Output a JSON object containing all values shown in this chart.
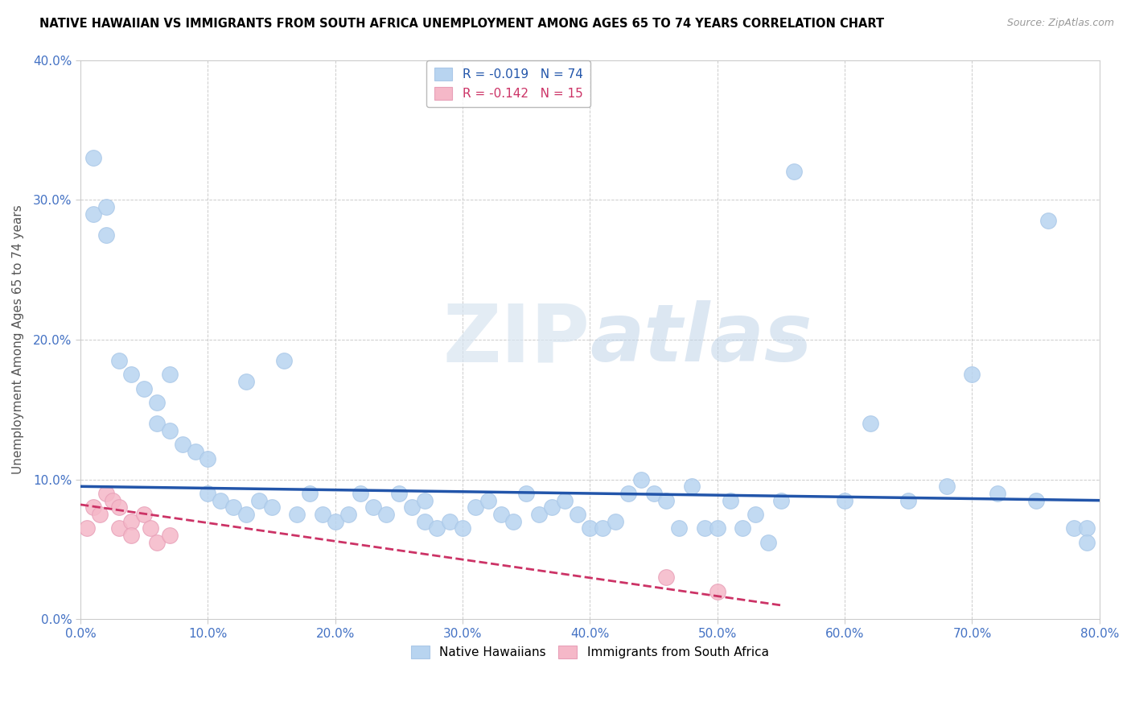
{
  "title": "NATIVE HAWAIIAN VS IMMIGRANTS FROM SOUTH AFRICA UNEMPLOYMENT AMONG AGES 65 TO 74 YEARS CORRELATION CHART",
  "source": "Source: ZipAtlas.com",
  "ylabel": "Unemployment Among Ages 65 to 74 years",
  "xlim": [
    0.0,
    0.8
  ],
  "ylim": [
    0.0,
    0.4
  ],
  "xticks": [
    0.0,
    0.1,
    0.2,
    0.3,
    0.4,
    0.5,
    0.6,
    0.7,
    0.8
  ],
  "xticklabels": [
    "0.0%",
    "10.0%",
    "20.0%",
    "30.0%",
    "40.0%",
    "50.0%",
    "60.0%",
    "70.0%",
    "80.0%"
  ],
  "yticks": [
    0.0,
    0.1,
    0.2,
    0.3,
    0.4
  ],
  "yticklabels": [
    "0.0%",
    "10.0%",
    "20.0%",
    "30.0%",
    "40.0%"
  ],
  "native_hawaiian_color": "#b8d4f0",
  "south_africa_color": "#f5b8c8",
  "trend_blue_color": "#2255aa",
  "trend_pink_color": "#cc3366",
  "watermark_color": "#e0e8f4",
  "legend_R_blue": "R = -0.019",
  "legend_N_blue": "N = 74",
  "legend_R_pink": "R = -0.142",
  "legend_N_pink": "N = 15",
  "native_hawaiian_x": [
    0.01,
    0.01,
    0.02,
    0.02,
    0.03,
    0.04,
    0.05,
    0.06,
    0.06,
    0.07,
    0.07,
    0.08,
    0.09,
    0.1,
    0.1,
    0.11,
    0.12,
    0.13,
    0.13,
    0.14,
    0.15,
    0.16,
    0.17,
    0.18,
    0.19,
    0.2,
    0.21,
    0.22,
    0.23,
    0.24,
    0.25,
    0.26,
    0.27,
    0.27,
    0.28,
    0.29,
    0.3,
    0.31,
    0.32,
    0.33,
    0.34,
    0.35,
    0.36,
    0.37,
    0.38,
    0.39,
    0.4,
    0.41,
    0.42,
    0.43,
    0.44,
    0.45,
    0.46,
    0.47,
    0.48,
    0.49,
    0.5,
    0.51,
    0.52,
    0.53,
    0.54,
    0.55,
    0.56,
    0.6,
    0.62,
    0.65,
    0.68,
    0.7,
    0.72,
    0.75,
    0.76,
    0.78,
    0.79,
    0.79
  ],
  "native_hawaiian_y": [
    0.33,
    0.29,
    0.295,
    0.275,
    0.185,
    0.175,
    0.165,
    0.155,
    0.14,
    0.135,
    0.175,
    0.125,
    0.12,
    0.115,
    0.09,
    0.085,
    0.08,
    0.075,
    0.17,
    0.085,
    0.08,
    0.185,
    0.075,
    0.09,
    0.075,
    0.07,
    0.075,
    0.09,
    0.08,
    0.075,
    0.09,
    0.08,
    0.085,
    0.07,
    0.065,
    0.07,
    0.065,
    0.08,
    0.085,
    0.075,
    0.07,
    0.09,
    0.075,
    0.08,
    0.085,
    0.075,
    0.065,
    0.065,
    0.07,
    0.09,
    0.1,
    0.09,
    0.085,
    0.065,
    0.095,
    0.065,
    0.065,
    0.085,
    0.065,
    0.075,
    0.055,
    0.085,
    0.32,
    0.085,
    0.14,
    0.085,
    0.095,
    0.175,
    0.09,
    0.085,
    0.285,
    0.065,
    0.065,
    0.055
  ],
  "south_africa_x": [
    0.005,
    0.01,
    0.015,
    0.02,
    0.025,
    0.03,
    0.03,
    0.04,
    0.04,
    0.05,
    0.055,
    0.06,
    0.07,
    0.46,
    0.5
  ],
  "south_africa_y": [
    0.065,
    0.08,
    0.075,
    0.09,
    0.085,
    0.065,
    0.08,
    0.07,
    0.06,
    0.075,
    0.065,
    0.055,
    0.06,
    0.03,
    0.02
  ],
  "blue_trend_x": [
    0.0,
    0.8
  ],
  "blue_trend_y": [
    0.095,
    0.085
  ],
  "pink_trend_x": [
    0.0,
    0.55
  ],
  "pink_trend_y": [
    0.082,
    0.01
  ]
}
